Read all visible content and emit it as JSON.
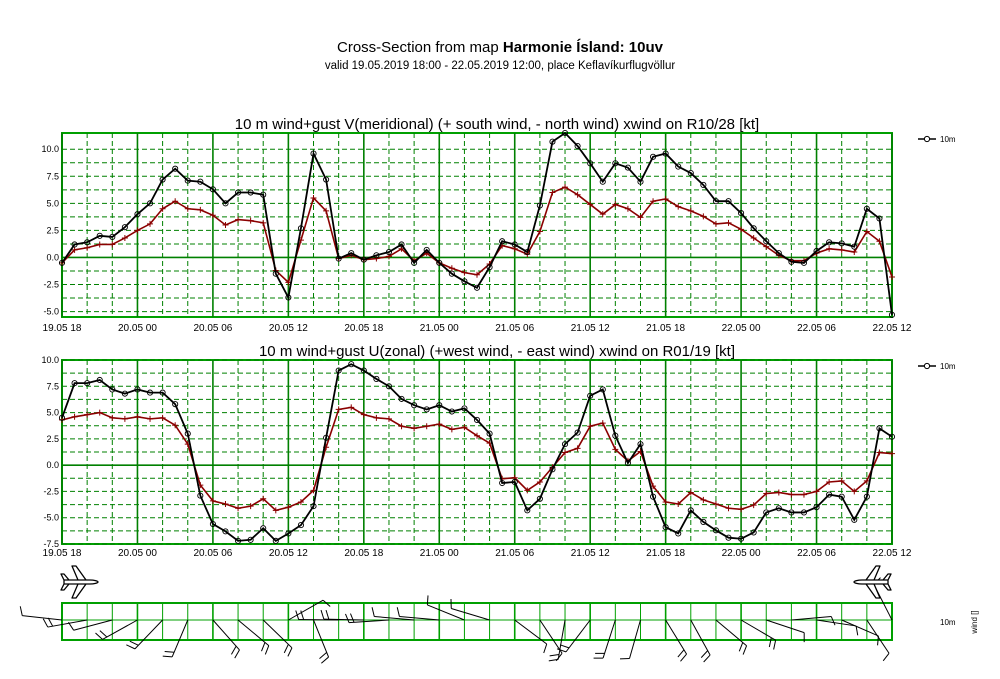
{
  "header": {
    "title_prefix": "Cross-Section from map",
    "title_bold": "Harmonie Ísland: 10uv",
    "subtitle": "valid 19.05.2019 18:00 - 22.05.2019 12:00, place Keflavíkurflugvöllur"
  },
  "colors": {
    "frame": "#00a000",
    "grid": "#008000",
    "wind": "#000000",
    "gust_line": "#000000",
    "wind_line": "#8b0000"
  },
  "x_tick_labels": [
    "19.05 18",
    "20.05 00",
    "20.05 06",
    "20.05 12",
    "20.05 18",
    "21.05 00",
    "21.05 06",
    "21.05 12",
    "21.05 18",
    "22.05 00",
    "22.05 06",
    "22.05 12"
  ],
  "legend_label": "10m",
  "wind_panel": {
    "level_label": "10m",
    "axis_label": "wind []"
  },
  "chart_data": [
    {
      "type": "line",
      "title": "10 m wind+gust V(meridional) (+ south wind, - north wind) xwind on R10/28 [kt]",
      "x_unit": "hours since 19.05 18",
      "x_range": [
        0,
        66
      ],
      "ylim": [
        -5.5,
        11.5
      ],
      "y_ticks": [
        -5.0,
        -2.5,
        0.0,
        2.5,
        5.0,
        7.5,
        10.0
      ],
      "y_tick_labels": [
        "-5.0",
        "-2.5",
        "0.0",
        "2.5",
        "5.0",
        "7.5",
        "10.0"
      ],
      "grid": true,
      "legend_position": "right",
      "x": [
        0,
        1,
        2,
        3,
        4,
        5,
        6,
        7,
        8,
        9,
        10,
        11,
        12,
        13,
        14,
        15,
        16,
        17,
        18,
        19,
        20,
        21,
        22,
        23,
        24,
        25,
        26,
        27,
        28,
        29,
        30,
        31,
        32,
        33,
        34,
        35,
        36,
        37,
        38,
        39,
        40,
        41,
        42,
        43,
        44,
        45,
        46,
        47,
        48,
        49,
        50,
        51,
        52,
        53,
        54,
        55,
        56,
        57,
        58,
        59,
        60,
        61,
        62,
        63,
        64,
        65,
        66
      ],
      "series": [
        {
          "name": "10m",
          "marker": "circle",
          "values": [
            -0.5,
            1.2,
            1.4,
            2.0,
            1.9,
            2.8,
            4.0,
            5.0,
            7.2,
            8.2,
            7.1,
            7.0,
            6.3,
            5.0,
            6.0,
            6.0,
            5.8,
            -1.5,
            -3.7,
            2.7,
            9.6,
            7.2,
            -0.1,
            0.4,
            -0.2,
            0.2,
            0.5,
            1.2,
            -0.5,
            0.7,
            -0.5,
            -1.5,
            -2.2,
            -2.8,
            -0.9,
            1.5,
            1.2,
            0.5,
            4.8,
            10.7,
            11.5,
            10.3,
            8.7,
            7.0,
            8.7,
            8.3,
            7.0,
            9.3,
            9.6,
            8.4,
            7.8,
            6.7,
            5.2,
            5.2,
            4.1,
            2.7,
            1.5,
            0.4,
            -0.4,
            -0.5,
            0.6,
            1.4,
            1.3,
            1.0,
            4.5,
            3.6,
            -5.3
          ]
        },
        {
          "marker": "plus",
          "values": [
            -0.5,
            0.7,
            0.9,
            1.2,
            1.2,
            1.8,
            2.5,
            3.1,
            4.5,
            5.2,
            4.5,
            4.4,
            3.9,
            3.0,
            3.5,
            3.4,
            3.2,
            -1.2,
            -2.3,
            1.6,
            5.5,
            4.3,
            -0.1,
            0.2,
            -0.2,
            -0.1,
            0.1,
            0.8,
            -0.3,
            0.4,
            -0.5,
            -1.0,
            -1.4,
            -1.6,
            -0.6,
            1.1,
            0.8,
            0.3,
            2.4,
            6.0,
            6.5,
            5.8,
            4.9,
            4.0,
            4.9,
            4.5,
            3.7,
            5.2,
            5.4,
            4.7,
            4.3,
            3.8,
            3.1,
            3.2,
            2.6,
            1.8,
            1.0,
            0.2,
            -0.3,
            -0.3,
            0.4,
            0.8,
            0.7,
            0.5,
            2.4,
            1.5,
            -1.8
          ]
        }
      ]
    },
    {
      "type": "line",
      "title": "10 m wind+gust U(zonal) (+west wind, - east wind) xwind on R01/19 [kt]",
      "x_unit": "hours since 19.05 18",
      "x_range": [
        0,
        66
      ],
      "ylim": [
        -7.5,
        10.0
      ],
      "y_ticks": [
        -7.5,
        -5.0,
        -2.5,
        0.0,
        2.5,
        5.0,
        7.5,
        10.0
      ],
      "y_tick_labels": [
        "-7.5",
        "-5.0",
        "-2.5",
        "0.0",
        "2.5",
        "5.0",
        "7.5",
        "10.0"
      ],
      "grid": true,
      "legend_position": "right",
      "x": [
        0,
        1,
        2,
        3,
        4,
        5,
        6,
        7,
        8,
        9,
        10,
        11,
        12,
        13,
        14,
        15,
        16,
        17,
        18,
        19,
        20,
        21,
        22,
        23,
        24,
        25,
        26,
        27,
        28,
        29,
        30,
        31,
        32,
        33,
        34,
        35,
        36,
        37,
        38,
        39,
        40,
        41,
        42,
        43,
        44,
        45,
        46,
        47,
        48,
        49,
        50,
        51,
        52,
        53,
        54,
        55,
        56,
        57,
        58,
        59,
        60,
        61,
        62,
        63,
        64,
        65,
        66
      ],
      "series": [
        {
          "name": "10m",
          "marker": "circle",
          "values": [
            4.5,
            7.8,
            7.8,
            8.1,
            7.2,
            6.8,
            7.2,
            6.9,
            6.9,
            5.8,
            3.0,
            -2.9,
            -5.6,
            -6.3,
            -7.2,
            -7.1,
            -6.0,
            -7.2,
            -6.5,
            -5.7,
            -3.9,
            2.6,
            9.0,
            9.6,
            9.0,
            8.2,
            7.5,
            6.3,
            5.7,
            5.3,
            5.7,
            5.1,
            5.4,
            4.3,
            3.0,
            -1.7,
            -1.6,
            -4.3,
            -3.2,
            -0.4,
            2.0,
            3.1,
            6.6,
            7.2,
            2.8,
            0.2,
            2.0,
            -3.0,
            -5.9,
            -6.5,
            -4.3,
            -5.4,
            -6.2,
            -6.9,
            -7.0,
            -6.4,
            -4.5,
            -4.1,
            -4.5,
            -4.5,
            -4.0,
            -2.8,
            -3.0,
            -5.2,
            -3.0,
            3.5,
            2.7
          ]
        },
        {
          "marker": "plus",
          "values": [
            4.3,
            4.6,
            4.8,
            5.0,
            4.5,
            4.4,
            4.6,
            4.4,
            4.5,
            3.8,
            2.0,
            -1.9,
            -3.4,
            -3.7,
            -4.1,
            -3.9,
            -3.2,
            -4.3,
            -4.0,
            -3.5,
            -2.4,
            1.7,
            5.3,
            5.5,
            4.8,
            4.5,
            4.4,
            3.7,
            3.5,
            3.7,
            3.9,
            3.4,
            3.6,
            2.8,
            2.1,
            -1.3,
            -1.2,
            -2.4,
            -1.6,
            -0.2,
            1.2,
            1.6,
            3.7,
            4.0,
            1.5,
            0.4,
            1.3,
            -2.0,
            -3.5,
            -3.7,
            -2.6,
            -3.3,
            -3.7,
            -4.1,
            -4.2,
            -3.8,
            -2.7,
            -2.6,
            -2.8,
            -2.8,
            -2.5,
            -1.6,
            -1.5,
            -2.5,
            -1.5,
            1.2,
            1.1
          ]
        }
      ]
    },
    {
      "type": "other",
      "title": "wind barbs",
      "x_unit": "hours since 19.05 18",
      "x_range": [
        0,
        66
      ],
      "series": [
        {
          "name": "10m",
          "marker": "wind barb",
          "u": [
            4.5,
            7.8,
            7.8,
            8.1,
            7.2,
            6.8,
            7.2,
            6.9,
            6.9,
            5.8,
            3.0,
            -2.9,
            -5.6,
            -6.3,
            -7.2,
            -7.1,
            -6.0,
            -7.2,
            -6.5,
            -5.7,
            -3.9,
            2.6,
            9.0,
            9.6,
            9.0,
            8.2,
            7.5,
            6.3,
            5.7,
            5.3,
            5.7,
            5.1,
            5.4,
            4.3,
            3.0,
            -1.7,
            -1.6,
            -4.3,
            -3.2,
            -0.4,
            2.0,
            3.1,
            6.6,
            7.2,
            2.8,
            0.2,
            2.0,
            -3.0,
            -5.9,
            -6.5,
            -4.3,
            -5.4,
            -6.2,
            -6.9,
            -7.0,
            -6.4,
            -4.5,
            -4.1,
            -4.5,
            -4.5,
            -4.0,
            -2.8,
            -3.0,
            -5.2,
            -3.0,
            3.5,
            2.7
          ],
          "v": [
            -0.5,
            1.2,
            1.4,
            2.0,
            1.9,
            2.8,
            4.0,
            5.0,
            7.2,
            8.2,
            7.1,
            7.0,
            6.3,
            5.0,
            6.0,
            6.0,
            5.8,
            -1.5,
            -3.7,
            2.7,
            9.6,
            7.2,
            -0.1,
            0.4,
            -0.2,
            0.2,
            0.5,
            1.2,
            -0.5,
            0.7,
            -0.5,
            -1.5,
            -2.2,
            -2.8,
            -0.9,
            1.5,
            1.2,
            0.5,
            4.8,
            10.7,
            11.5,
            10.3,
            8.7,
            7.0,
            8.7,
            8.3,
            7.0,
            9.3,
            9.6,
            8.4,
            7.8,
            6.7,
            5.2,
            5.2,
            4.1,
            2.7,
            1.5,
            0.4,
            -0.4,
            -0.5,
            0.6,
            1.4,
            1.3,
            1.0,
            4.5,
            3.6,
            -5.3
          ]
        }
      ]
    }
  ]
}
